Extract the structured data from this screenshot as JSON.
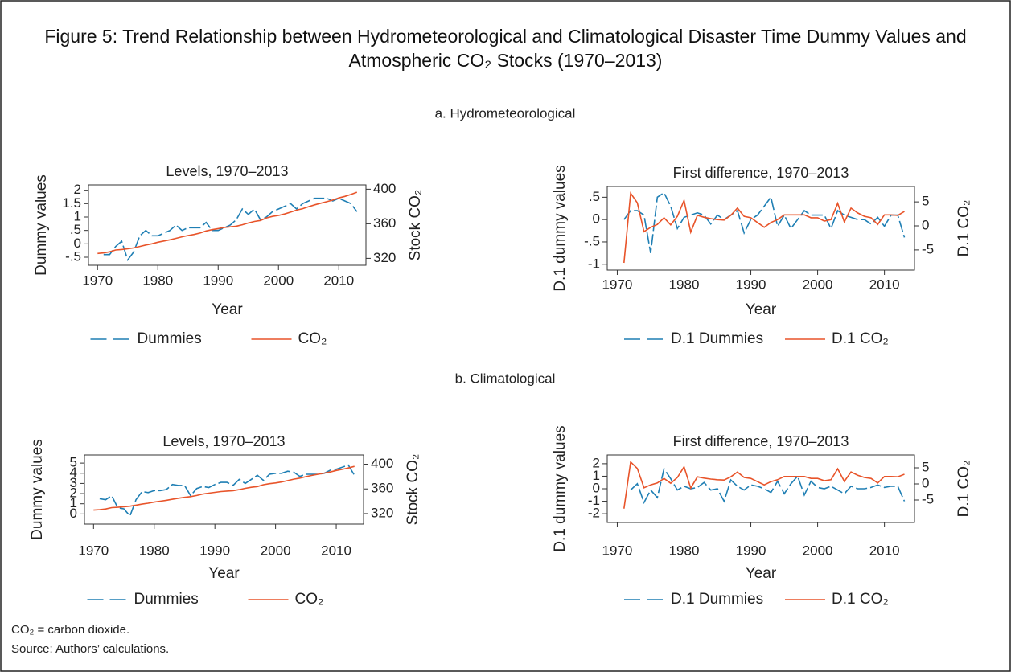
{
  "figure_title": "Figure 5: Trend Relationship between Hydrometeorological and Climatological Disaster Time Dummy Values and Atmospheric CO₂ Stocks (1970–2013)",
  "section_labels": [
    "a. Hydrometeorological",
    "b. Climatological"
  ],
  "footnotes": [
    "CO₂ = carbon dioxide.",
    "Source: Authors’ calculations."
  ],
  "chart_data": [
    {
      "type": "line",
      "title": "Levels, 1970–2013",
      "xlabel": "Year",
      "ylabel": "Dummy values",
      "y2label": "Stock CO₂",
      "x": [
        1970,
        1971,
        1972,
        1973,
        1974,
        1975,
        1976,
        1977,
        1978,
        1979,
        1980,
        1981,
        1982,
        1983,
        1984,
        1985,
        1986,
        1987,
        1988,
        1989,
        1990,
        1991,
        1992,
        1993,
        1994,
        1995,
        1996,
        1997,
        1998,
        1999,
        2000,
        2001,
        2002,
        2003,
        2004,
        2005,
        2006,
        2007,
        2008,
        2009,
        2010,
        2011,
        2012,
        2013
      ],
      "xlim": [
        1968.5,
        2014.5
      ],
      "xticks": [
        1970,
        1980,
        1990,
        2000,
        2010
      ],
      "ylim": [
        -0.8,
        2.2
      ],
      "yticks": [
        {
          "value": -0.5,
          "label": "-.5"
        },
        0,
        {
          "value": 0.5,
          "label": ".5"
        },
        1,
        1.5,
        2
      ],
      "y2lim": [
        312,
        405
      ],
      "y2ticks": [
        320,
        360,
        400
      ],
      "series": [
        {
          "name": "Dummies",
          "color": "#1f7fb4",
          "dash": true,
          "values": [
            null,
            -0.4,
            -0.4,
            -0.1,
            0.1,
            -0.6,
            -0.3,
            0.3,
            0.5,
            0.3,
            0.3,
            0.4,
            0.5,
            0.7,
            0.5,
            0.6,
            0.6,
            0.6,
            0.8,
            0.5,
            0.5,
            0.6,
            0.7,
            0.9,
            1.3,
            1.1,
            1.3,
            0.9,
            1.0,
            1.2,
            1.3,
            1.4,
            1.5,
            1.3,
            1.5,
            1.6,
            1.7,
            1.7,
            1.7,
            1.6,
            1.7,
            1.6,
            1.5,
            1.2
          ]
        },
        {
          "name": "CO₂",
          "color": "#e8542a",
          "axis": "y2",
          "values": [
            325.7,
            326.3,
            327.5,
            329.7,
            330.2,
            331.1,
            332.1,
            333.8,
            335.4,
            336.8,
            338.7,
            340.1,
            341.5,
            343.2,
            344.9,
            346.4,
            347.6,
            349.3,
            351.7,
            353.2,
            354.4,
            355.7,
            356.5,
            357.2,
            358.9,
            360.9,
            362.7,
            363.8,
            366.8,
            368.5,
            369.7,
            371.3,
            373.5,
            375.8,
            377.5,
            379.8,
            381.9,
            383.8,
            385.6,
            387.4,
            389.9,
            391.7,
            393.9,
            396.5
          ]
        }
      ]
    },
    {
      "type": "line",
      "title": "First difference, 1970–2013",
      "xlabel": "Year",
      "ylabel": "D.1 dummy values",
      "y2label": "D.1 CO₂",
      "x": [
        1970,
        1971,
        1972,
        1973,
        1974,
        1975,
        1976,
        1977,
        1978,
        1979,
        1980,
        1981,
        1982,
        1983,
        1984,
        1985,
        1986,
        1987,
        1988,
        1989,
        1990,
        1991,
        1992,
        1993,
        1994,
        1995,
        1996,
        1997,
        1998,
        1999,
        2000,
        2001,
        2002,
        2003,
        2004,
        2005,
        2006,
        2007,
        2008,
        2009,
        2010,
        2011,
        2012,
        2013
      ],
      "xlim": [
        1968.5,
        2014.5
      ],
      "xticks": [
        1970,
        1980,
        1990,
        2000,
        2010
      ],
      "ylim": [
        -1.13,
        0.74
      ],
      "yticks": [
        -1,
        {
          "value": -0.5,
          "label": "-.5"
        },
        0,
        {
          "value": 0.5,
          "label": ".5"
        }
      ],
      "y2lim": [
        -9.2,
        8.2
      ],
      "y2ticks": [
        -5,
        0,
        5
      ],
      "series": [
        {
          "name": "D.1 Dummies",
          "color": "#1f7fb4",
          "dash": true,
          "values": [
            null,
            0,
            0.2,
            0.2,
            0.1,
            -0.75,
            0.5,
            0.6,
            0.3,
            -0.2,
            0.05,
            0.1,
            0.15,
            0.1,
            -0.1,
            0.1,
            0,
            0.1,
            0.2,
            -0.3,
            0,
            0.1,
            0.3,
            0.5,
            -0.15,
            0.1,
            -0.2,
            0,
            0.2,
            0.1,
            0.1,
            0.1,
            -0.2,
            0.2,
            0.1,
            0.05,
            0,
            0,
            -0.1,
            0.05,
            -0.15,
            0.1,
            0.1,
            -0.4
          ]
        },
        {
          "name": "D.1 CO₂",
          "color": "#e8542a",
          "axis": "y2",
          "values": [
            null,
            -7.7,
            6.8,
            4.8,
            -1.2,
            -0.3,
            0.3,
            1.7,
            0.2,
            2,
            5.3,
            -1.3,
            2.2,
            1.8,
            1.5,
            1.3,
            1.2,
            2.2,
            3.7,
            2,
            1.7,
            0.7,
            -0.3,
            0.7,
            1.3,
            2.3,
            2.3,
            2.3,
            2.3,
            1.7,
            1.7,
            1,
            1.3,
            4.7,
            0.8,
            3.7,
            2.7,
            2,
            1.7,
            0.3,
            2.3,
            2.3,
            2.2,
            3
          ]
        }
      ]
    },
    {
      "type": "line",
      "title": "Levels, 1970–2013",
      "xlabel": "Year",
      "ylabel": "Dummy values",
      "y2label": "Stock CO₂",
      "x": [
        1970,
        1971,
        1972,
        1973,
        1974,
        1975,
        1976,
        1977,
        1978,
        1979,
        1980,
        1981,
        1982,
        1983,
        1984,
        1985,
        1986,
        1987,
        1988,
        1989,
        1990,
        1991,
        1992,
        1993,
        1994,
        1995,
        1996,
        1997,
        1998,
        1999,
        2000,
        2001,
        2002,
        2003,
        2004,
        2005,
        2006,
        2007,
        2008,
        2009,
        2010,
        2011,
        2012,
        2013
      ],
      "xlim": [
        1968.5,
        2014.5
      ],
      "xticks": [
        1970,
        1980,
        1990,
        2000,
        2010
      ],
      "ylim": [
        -1,
        5.8
      ],
      "yticks": [
        0,
        1,
        2,
        3,
        4,
        5
      ],
      "y2lim": [
        303,
        415
      ],
      "y2ticks": [
        320,
        360,
        400
      ],
      "series": [
        {
          "name": "Dummies",
          "color": "#1f7fb4",
          "dash": true,
          "values": [
            null,
            1.5,
            1.4,
            1.8,
            0.6,
            0.5,
            -0.2,
            1.4,
            2.2,
            2.1,
            2.3,
            2.3,
            2.4,
            2.9,
            2.8,
            2.8,
            1.8,
            2.5,
            2.7,
            2.6,
            2.9,
            3.1,
            3.1,
            2.8,
            3.4,
            3.0,
            3.4,
            3.8,
            3.3,
            3.9,
            4.0,
            4.0,
            4.2,
            4.1,
            3.7,
            3.9,
            3.9,
            3.9,
            4.0,
            4.3,
            4.4,
            4.6,
            4.8,
            3.8
          ]
        },
        {
          "name": "CO₂",
          "color": "#e8542a",
          "axis": "y2",
          "values": [
            325.7,
            326.3,
            327.5,
            329.7,
            330.2,
            331.1,
            332.1,
            333.8,
            335.4,
            336.8,
            338.7,
            340.1,
            341.5,
            343.2,
            344.9,
            346.4,
            347.6,
            349.3,
            351.7,
            353.2,
            354.4,
            355.7,
            356.5,
            357.2,
            358.9,
            360.9,
            362.7,
            363.8,
            366.8,
            368.5,
            369.7,
            371.3,
            373.5,
            375.8,
            377.5,
            379.8,
            381.9,
            383.8,
            385.6,
            387.4,
            389.9,
            391.7,
            393.9,
            396.5
          ]
        }
      ]
    },
    {
      "type": "line",
      "title": "First difference, 1970–2013",
      "xlabel": "Year",
      "ylabel": "D.1 dummy values",
      "y2label": "D.1 CO₂",
      "x": [
        1970,
        1971,
        1972,
        1973,
        1974,
        1975,
        1976,
        1977,
        1978,
        1979,
        1980,
        1981,
        1982,
        1983,
        1984,
        1985,
        1986,
        1987,
        1988,
        1989,
        1990,
        1991,
        1992,
        1993,
        1994,
        1995,
        1996,
        1997,
        1998,
        1999,
        2000,
        2001,
        2002,
        2003,
        2004,
        2005,
        2006,
        2007,
        2008,
        2009,
        2010,
        2011,
        2012,
        2013
      ],
      "xlim": [
        1968.5,
        2014.5
      ],
      "xticks": [
        1970,
        1980,
        1990,
        2000,
        2010
      ],
      "ylim": [
        -2.7,
        2.7
      ],
      "yticks": [
        -2,
        -1,
        0,
        1,
        2
      ],
      "y2lim": [
        -12,
        9
      ],
      "y2ticks": [
        -5,
        0,
        5
      ],
      "series": [
        {
          "name": "D.1 Dummies",
          "color": "#1f7fb4",
          "dash": true,
          "values": [
            null,
            null,
            -0.1,
            0.4,
            -1.1,
            -0.1,
            -0.7,
            1.6,
            0.8,
            -0.1,
            0.2,
            0,
            0.1,
            0.5,
            -0.1,
            0,
            -1.0,
            0.7,
            0.2,
            -0.1,
            0.3,
            0.2,
            0,
            -0.3,
            0.6,
            -0.4,
            0.4,
            1.0,
            -0.5,
            0.6,
            0.1,
            0,
            0.2,
            -0.1,
            -0.4,
            0.2,
            0,
            0,
            0.1,
            0.3,
            0.1,
            0.2,
            0.2,
            -1.0
          ]
        },
        {
          "name": "D.1 CO₂",
          "color": "#e8542a",
          "axis": "y2",
          "values": [
            null,
            -7.7,
            6.8,
            4.8,
            -1.2,
            -0.3,
            0.3,
            1.7,
            0.2,
            2,
            5.3,
            -1.3,
            2.2,
            1.8,
            1.5,
            1.3,
            1.2,
            2.2,
            3.7,
            2,
            1.7,
            0.7,
            -0.3,
            0.7,
            1.3,
            2.3,
            2.3,
            2.3,
            2.3,
            1.7,
            1.7,
            1,
            1.3,
            4.7,
            0.8,
            3.7,
            2.7,
            2,
            1.7,
            0.3,
            2.3,
            2.3,
            2.2,
            3
          ]
        }
      ]
    }
  ]
}
